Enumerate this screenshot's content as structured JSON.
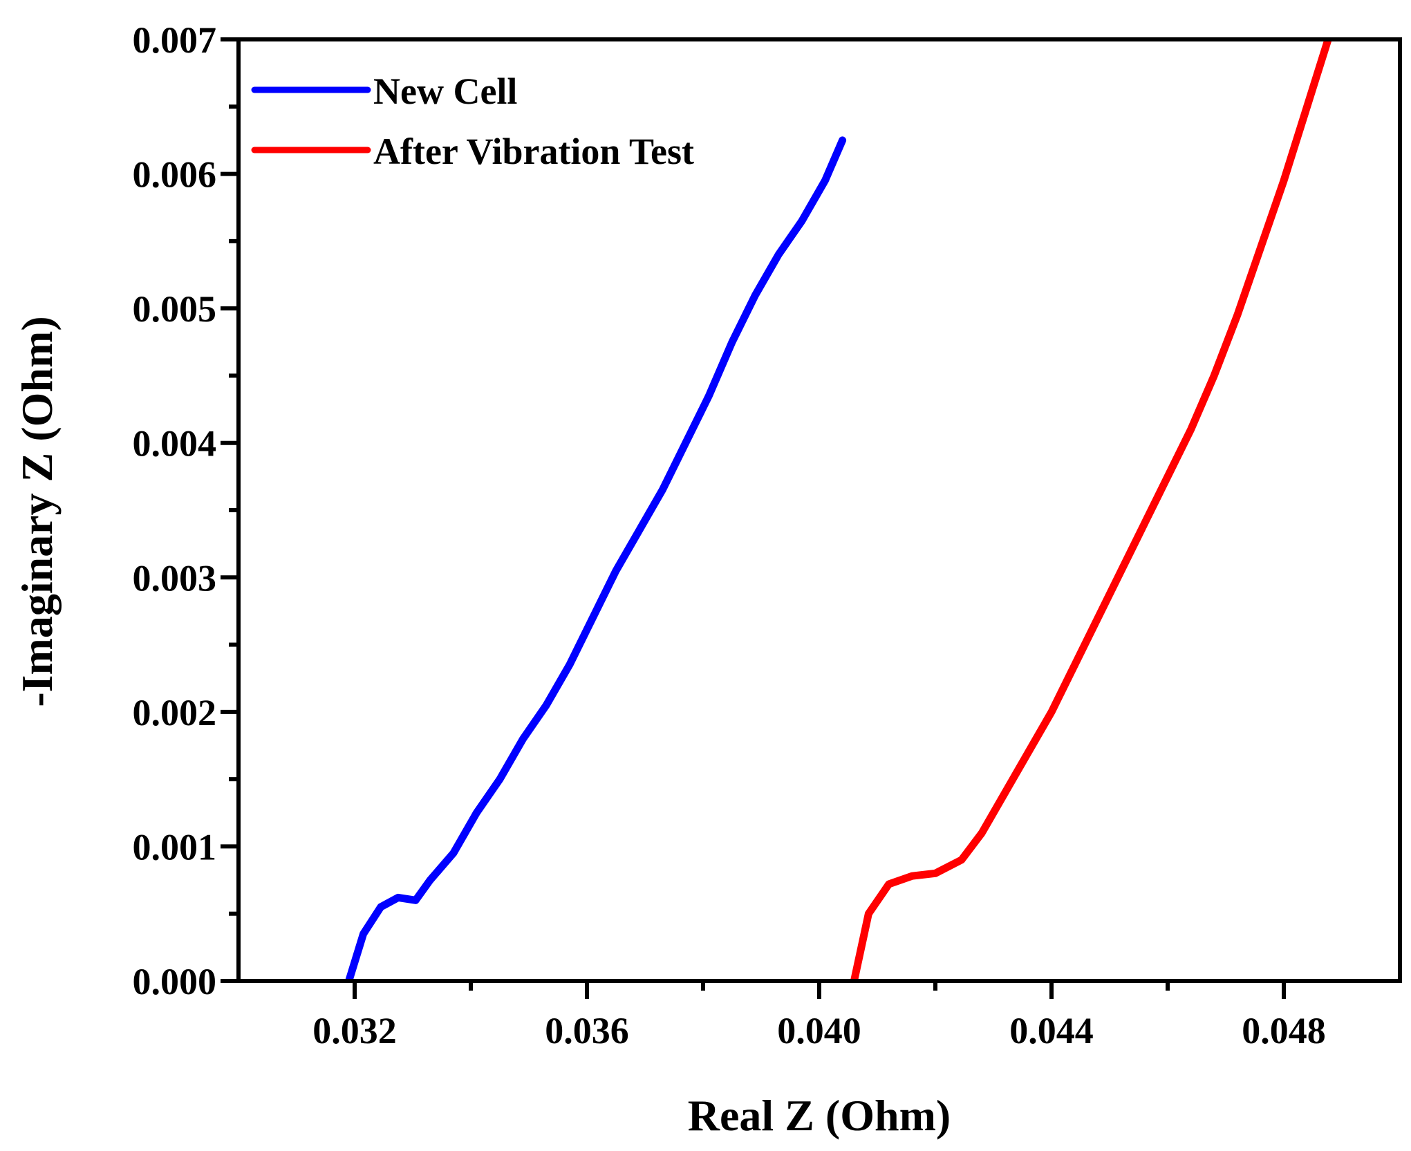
{
  "chart_data": {
    "type": "line",
    "title": "",
    "xlabel": "Real Z (Ohm)",
    "ylabel": "-Imaginary Z (Ohm)",
    "xlim": [
      0.03,
      0.05
    ],
    "ylim": [
      0.0,
      0.007
    ],
    "x_ticks": [
      0.032,
      0.036,
      0.04,
      0.044,
      0.048
    ],
    "x_tick_labels": [
      "0.032",
      "0.036",
      "0.040",
      "0.044",
      "0.048"
    ],
    "y_ticks": [
      0.0,
      0.001,
      0.002,
      0.003,
      0.004,
      0.005,
      0.006,
      0.007
    ],
    "y_tick_labels": [
      "0.000",
      "0.001",
      "0.002",
      "0.003",
      "0.004",
      "0.005",
      "0.006",
      "0.007"
    ],
    "grid": false,
    "legend_position": "top-left",
    "series": [
      {
        "name": "New Cell",
        "color": "#0000ff",
        "x": [
          0.0319,
          0.03215,
          0.03245,
          0.03275,
          0.03305,
          0.0333,
          0.0337,
          0.0341,
          0.0345,
          0.0349,
          0.0353,
          0.0357,
          0.0361,
          0.0365,
          0.0369,
          0.0373,
          0.0377,
          0.0381,
          0.0385,
          0.0389,
          0.0393,
          0.0397,
          0.0401,
          0.0404
        ],
        "y": [
          0.0,
          0.00035,
          0.00055,
          0.00062,
          0.0006,
          0.00075,
          0.00095,
          0.00125,
          0.0015,
          0.0018,
          0.00205,
          0.00235,
          0.0027,
          0.00305,
          0.00335,
          0.00365,
          0.004,
          0.00435,
          0.00475,
          0.0051,
          0.0054,
          0.00565,
          0.00595,
          0.00625
        ]
      },
      {
        "name": "After Vibration Test",
        "color": "#ff0000",
        "x": [
          0.0406,
          0.04085,
          0.0412,
          0.0416,
          0.042,
          0.04245,
          0.0428,
          0.0432,
          0.0436,
          0.044,
          0.0444,
          0.0448,
          0.0452,
          0.0456,
          0.046,
          0.0464,
          0.0468,
          0.0472,
          0.0476,
          0.048,
          0.0484,
          0.0488
        ],
        "y": [
          0.0,
          0.0005,
          0.00072,
          0.00078,
          0.0008,
          0.0009,
          0.0011,
          0.0014,
          0.0017,
          0.002,
          0.00235,
          0.0027,
          0.00305,
          0.0034,
          0.00375,
          0.0041,
          0.0045,
          0.00495,
          0.00545,
          0.00595,
          0.0065,
          0.00705
        ]
      }
    ]
  }
}
